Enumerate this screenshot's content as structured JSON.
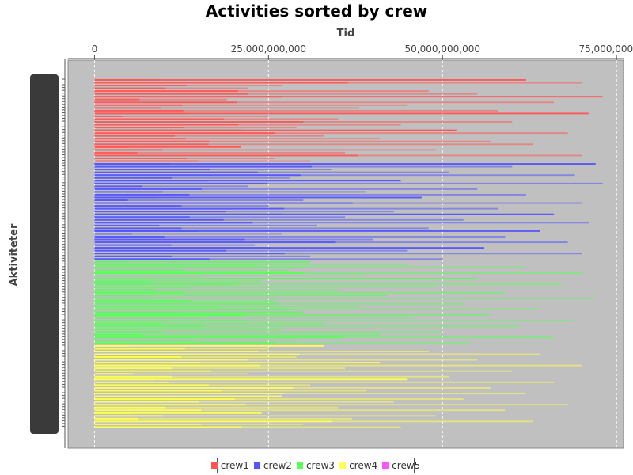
{
  "chart_data": {
    "type": "bar",
    "orientation": "horizontal",
    "title": "Activities sorted by crew",
    "xlabel": "Tid",
    "ylabel": "Aktiviteter",
    "xlim": [
      -3800000000,
      76000000000
    ],
    "xticks": [
      0,
      25000000000,
      50000000000,
      75000000000
    ],
    "xtick_labels": [
      "0",
      "25,000,000,000",
      "50,000,000,000",
      "75,000,000,000"
    ],
    "x_axis_position": "top",
    "grid": true,
    "legend_position": "bottom",
    "plot_background": "#c0c0c0",
    "series": [
      {
        "name": "crew1",
        "color": "#ff5555",
        "approx_activity_count": 30,
        "values": [
          62000000000,
          70000000000,
          27000000000,
          22000000000,
          48000000000,
          55000000000,
          73000000000,
          19000000000,
          66000000000,
          45000000000,
          38000000000,
          58000000000,
          71000000000,
          25000000000,
          35000000000,
          60000000000,
          44000000000,
          29000000000,
          52000000000,
          68000000000,
          33000000000,
          41000000000,
          57000000000,
          63000000000,
          21000000000,
          49000000000,
          36000000000,
          70000000000,
          26000000000,
          31000000000
        ]
      },
      {
        "name": "crew2",
        "color": "#5555ff",
        "approx_activity_count": 35,
        "values": [
          72000000000,
          60000000000,
          34000000000,
          51000000000,
          69000000000,
          28000000000,
          44000000000,
          73000000000,
          22000000000,
          55000000000,
          39000000000,
          62000000000,
          47000000000,
          30000000000,
          70000000000,
          25000000000,
          58000000000,
          43000000000,
          66000000000,
          36000000000,
          53000000000,
          71000000000,
          32000000000,
          48000000000,
          64000000000,
          27000000000,
          59000000000,
          40000000000,
          68000000000,
          23000000000,
          56000000000,
          45000000000,
          70000000000,
          31000000000,
          50000000000
        ]
      },
      {
        "name": "crew3",
        "color": "#55ff55",
        "approx_activity_count": 30,
        "values": [
          31000000000,
          45000000000,
          62000000000,
          28000000000,
          70000000000,
          39000000000,
          55000000000,
          24000000000,
          67000000000,
          49000000000,
          35000000000,
          59000000000,
          42000000000,
          72000000000,
          26000000000,
          53000000000,
          38000000000,
          64000000000,
          30000000000,
          57000000000,
          46000000000,
          69000000000,
          33000000000,
          61000000000,
          27000000000,
          50000000000,
          41000000000,
          66000000000,
          29000000000,
          54000000000
        ]
      },
      {
        "name": "crew4",
        "color": "#ffff55",
        "approx_activity_count": 30,
        "values": [
          33000000000,
          25000000000,
          48000000000,
          64000000000,
          29000000000,
          55000000000,
          41000000000,
          70000000000,
          36000000000,
          60000000000,
          22000000000,
          51000000000,
          45000000000,
          66000000000,
          31000000000,
          57000000000,
          39000000000,
          62000000000,
          27000000000,
          53000000000,
          43000000000,
          68000000000,
          35000000000,
          59000000000,
          24000000000,
          49000000000,
          37000000000,
          63000000000,
          30000000000,
          44000000000
        ]
      },
      {
        "name": "crew5",
        "color": "#ff55ff",
        "approx_activity_count": 0,
        "values": []
      }
    ]
  }
}
